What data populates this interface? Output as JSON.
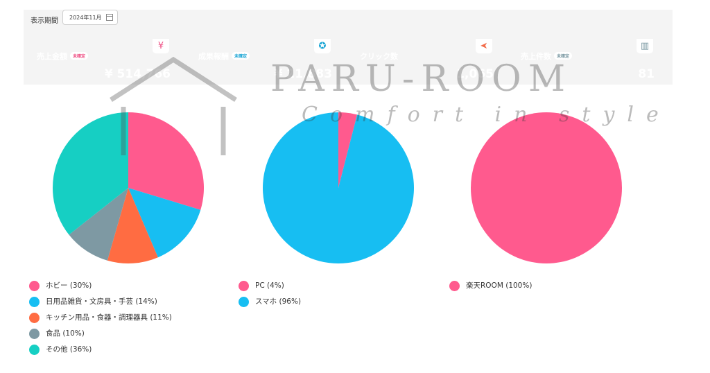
{
  "period": {
    "label": "表示期間",
    "value": "2024年11月",
    "icon": "calendar-icon"
  },
  "cards": [
    {
      "title": "売上金額",
      "badge": "未確定",
      "value": "¥ 514,766",
      "color": "#ee4d82",
      "icon": "yen-icon",
      "icon_glyph": "¥"
    },
    {
      "title": "成果報酬",
      "badge": "未確定",
      "value": "¥ 21,883",
      "color": "#12a2d3",
      "icon": "award-icon",
      "icon_glyph": "✪"
    },
    {
      "title": "クリック数",
      "badge": "",
      "value": "1,065",
      "color": "#f26c4a",
      "icon": "cursor-icon",
      "icon_glyph": "➤"
    },
    {
      "title": "売上件数",
      "badge": "未確定",
      "value": "81",
      "color": "#7a98a2",
      "icon": "box-icon",
      "icon_glyph": "▥"
    }
  ],
  "watermark": {
    "title": "PARU-ROOM",
    "tagline": "Comfort in style"
  },
  "chart_data": [
    {
      "type": "pie",
      "categories": [
        "ホビー",
        "日用品雑貨・文房具・手芸",
        "キッチン用品・食器・調理器具",
        "食品",
        "その他"
      ],
      "values": [
        30,
        14,
        11,
        10,
        36
      ],
      "colors": [
        "#ff5a8e",
        "#17bef2",
        "#ff6c42",
        "#7e99a3",
        "#16cfc3"
      ],
      "legend": [
        "ホビー (30%)",
        "日用品雑貨・文房具・手芸 (14%)",
        "キッチン用品・食器・調理器具 (11%)",
        "食品 (10%)",
        "その他 (36%)"
      ]
    },
    {
      "type": "pie",
      "categories": [
        "PC",
        "スマホ"
      ],
      "values": [
        4,
        96
      ],
      "colors": [
        "#ff5a8e",
        "#17bef2"
      ],
      "legend": [
        "PC (4%)",
        "スマホ (96%)"
      ]
    },
    {
      "type": "pie",
      "categories": [
        "楽天ROOM"
      ],
      "values": [
        100
      ],
      "colors": [
        "#ff5a8e"
      ],
      "legend": [
        "楽天ROOM (100%)"
      ]
    }
  ]
}
